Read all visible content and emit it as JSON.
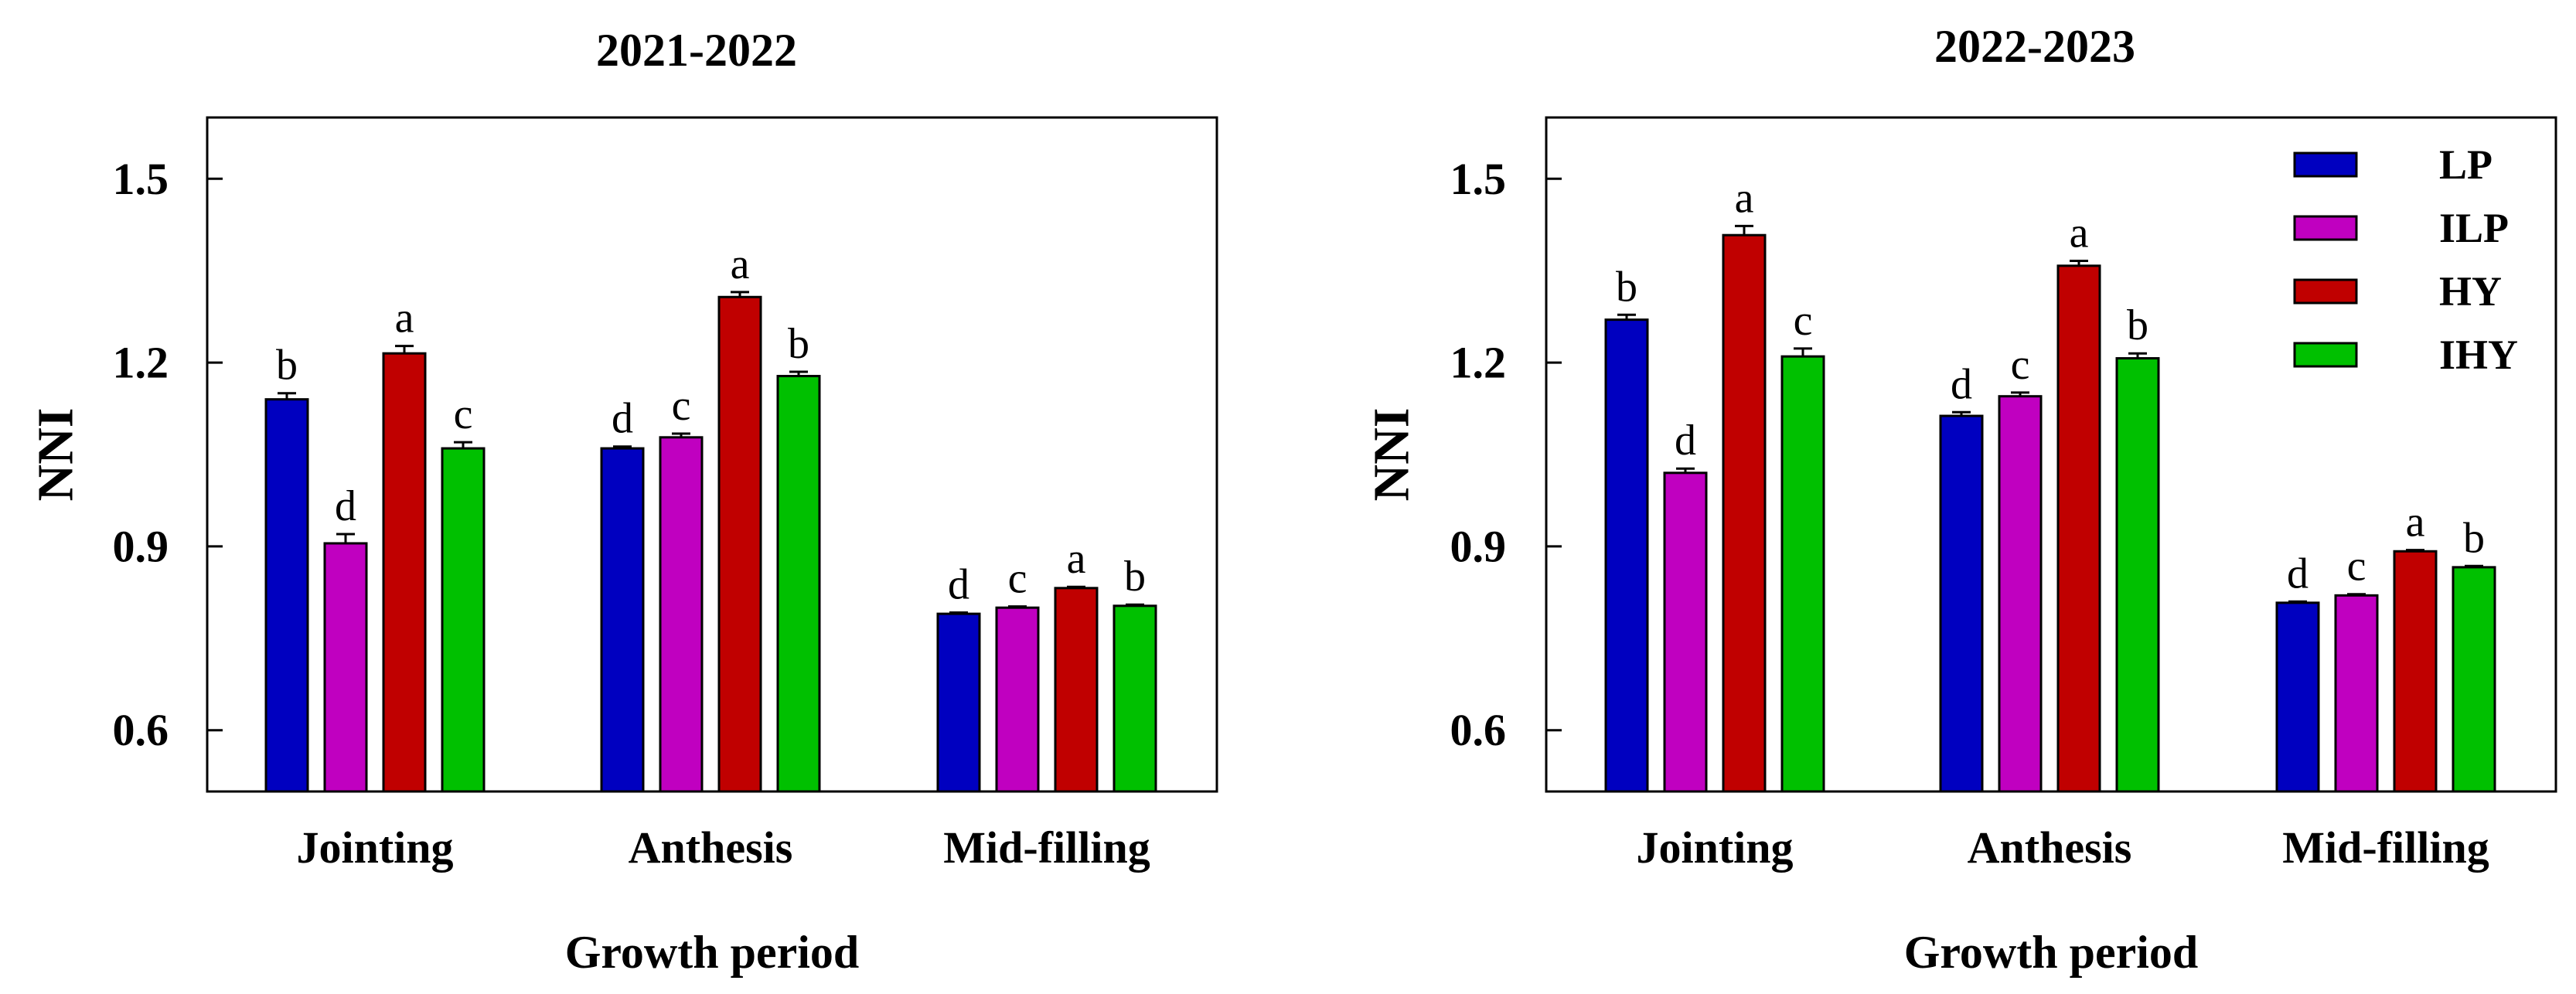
{
  "chart_data": [
    {
      "type": "bar",
      "title": "2021-2022",
      "xlabel": "Growth period",
      "ylabel": "NNI",
      "ylim": [
        0.5,
        1.6
      ],
      "yticks": [
        0.6,
        0.9,
        1.2,
        1.5
      ],
      "ytick_labels": [
        "0.6",
        "0.9",
        "1.2",
        "1.5"
      ],
      "categories": [
        "Jointing",
        "Anthesis",
        "Mid-filling"
      ],
      "series": [
        {
          "name": "LP",
          "color": "#0000c0",
          "values": [
            1.14,
            1.06,
            0.79
          ],
          "errors": [
            0.01,
            0.003,
            0.002
          ],
          "letters": [
            "b",
            "d",
            "d"
          ]
        },
        {
          "name": "ILP",
          "color": "#c000c0",
          "values": [
            0.905,
            1.078,
            0.8
          ],
          "errors": [
            0.015,
            0.006,
            0.002
          ],
          "letters": [
            "d",
            "c",
            "c"
          ]
        },
        {
          "name": "HY",
          "color": "#c00000",
          "values": [
            1.215,
            1.307,
            0.832
          ],
          "errors": [
            0.012,
            0.008,
            0.002
          ],
          "letters": [
            "a",
            "a",
            "a"
          ]
        },
        {
          "name": "IHY",
          "color": "#00c000",
          "values": [
            1.06,
            1.178,
            0.803
          ],
          "errors": [
            0.01,
            0.007,
            0.002
          ],
          "letters": [
            "c",
            "b",
            "b"
          ]
        }
      ],
      "legend": false
    },
    {
      "type": "bar",
      "title": "2022-2023",
      "xlabel": "Growth period",
      "ylabel": "NNI",
      "ylim": [
        0.5,
        1.6
      ],
      "yticks": [
        0.6,
        0.9,
        1.2,
        1.5
      ],
      "ytick_labels": [
        "0.6",
        "0.9",
        "1.2",
        "1.5"
      ],
      "categories": [
        "Jointing",
        "Anthesis",
        "Mid-filling"
      ],
      "series": [
        {
          "name": "LP",
          "color": "#0000c0",
          "values": [
            1.27,
            1.113,
            0.808
          ],
          "errors": [
            0.008,
            0.006,
            0.002
          ],
          "letters": [
            "b",
            "d",
            "d"
          ]
        },
        {
          "name": "ILP",
          "color": "#c000c0",
          "values": [
            1.02,
            1.145,
            0.82
          ],
          "errors": [
            0.007,
            0.006,
            0.002
          ],
          "letters": [
            "d",
            "c",
            "c"
          ]
        },
        {
          "name": "HY",
          "color": "#c00000",
          "values": [
            1.408,
            1.358,
            0.892
          ],
          "errors": [
            0.015,
            0.008,
            0.002
          ],
          "letters": [
            "a",
            "a",
            "a"
          ]
        },
        {
          "name": "IHY",
          "color": "#00c000",
          "values": [
            1.21,
            1.207,
            0.866
          ],
          "errors": [
            0.013,
            0.008,
            0.002
          ],
          "letters": [
            "c",
            "b",
            "b"
          ]
        }
      ],
      "legend": true,
      "legend_position": "top-right"
    }
  ]
}
